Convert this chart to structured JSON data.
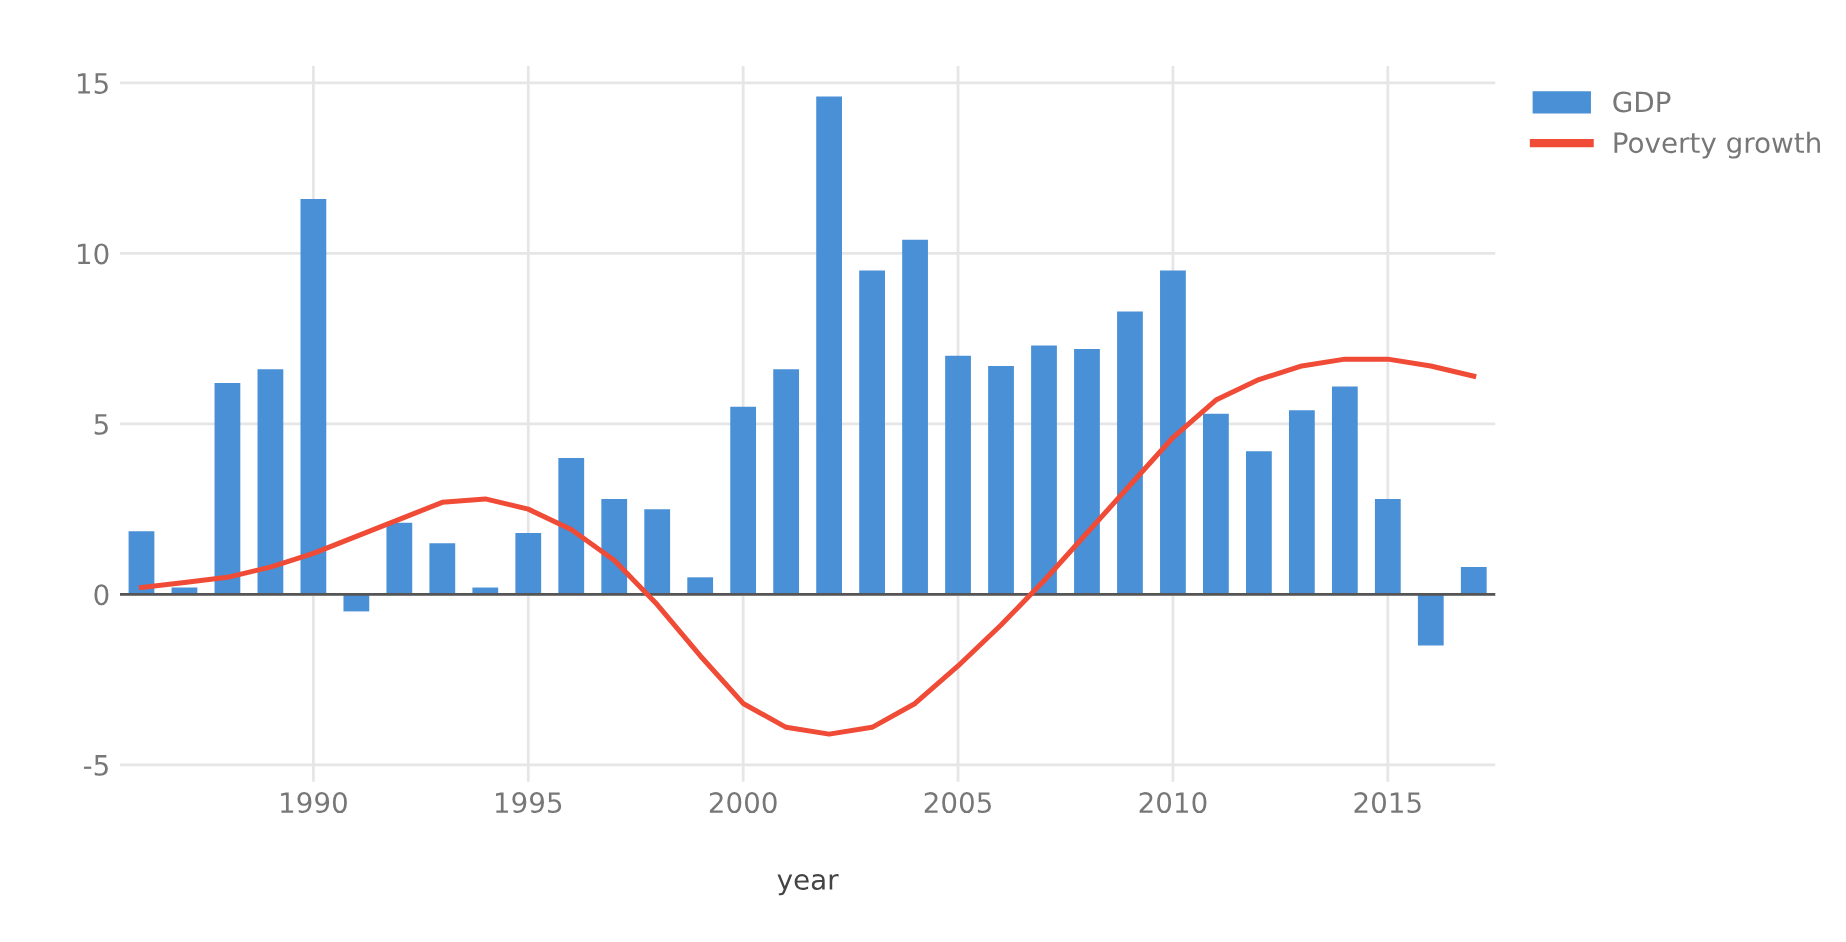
{
  "chart_data": {
    "type": "bar",
    "xlabel": "year",
    "x": [
      1986,
      1987,
      1988,
      1989,
      1990,
      1991,
      1992,
      1993,
      1994,
      1995,
      1996,
      1997,
      1998,
      1999,
      2000,
      2001,
      2002,
      2003,
      2004,
      2005,
      2006,
      2007,
      2008,
      2009,
      2010,
      2011,
      2012,
      2013,
      2014,
      2015,
      2016,
      2017
    ],
    "series": [
      {
        "name": "GDP",
        "color": "#4a90d6",
        "values": [
          1.85,
          0.2,
          6.2,
          6.6,
          11.6,
          -0.5,
          2.1,
          1.5,
          0.2,
          1.8,
          4.0,
          2.8,
          2.5,
          0.5,
          5.5,
          6.6,
          14.6,
          9.5,
          10.4,
          7.0,
          6.7,
          7.3,
          7.2,
          8.3,
          9.5,
          5.3,
          4.2,
          5.4,
          6.1,
          2.8,
          -1.5,
          0.8
        ]
      },
      {
        "name": "Poverty growth",
        "type": "line",
        "color": "#f04b36",
        "values": [
          0.2,
          0.35,
          0.5,
          0.8,
          1.2,
          1.7,
          2.2,
          2.7,
          2.8,
          2.5,
          1.9,
          1.0,
          -0.3,
          -1.8,
          -3.2,
          -3.9,
          -4.1,
          -3.9,
          -3.2,
          -2.1,
          -0.9,
          0.4,
          1.8,
          3.2,
          4.6,
          5.7,
          6.3,
          6.7,
          6.9,
          6.9,
          6.7,
          6.4
        ]
      }
    ],
    "xlim": [
      1985.5,
      2017.5
    ],
    "xticks": [
      1990,
      1995,
      2000,
      2005,
      2010,
      2015
    ],
    "ylim": [
      -5.5,
      15.5
    ],
    "yticks": [
      -5,
      0,
      5,
      10,
      15
    ],
    "grid": true,
    "legend": "top right",
    "marker": "none",
    "line_style": "solid"
  }
}
